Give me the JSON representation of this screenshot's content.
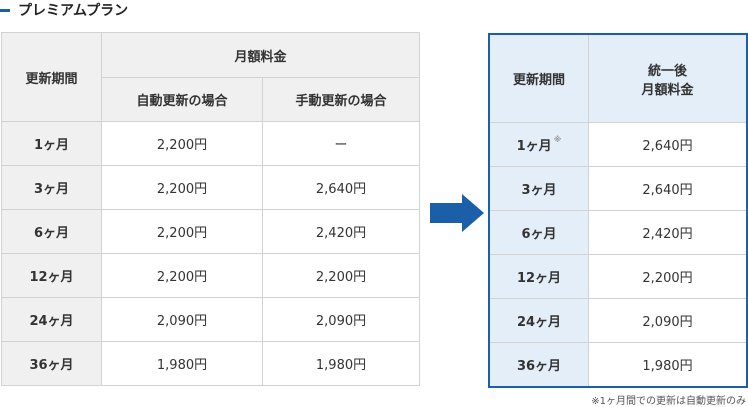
{
  "title": "プレミアムプラン",
  "colors": {
    "accent": "#1a5fa8",
    "header_bg": "#f0f0f0",
    "new_header_bg": "#e4eef9"
  },
  "current": {
    "col_period": "更新期間",
    "col_monthly": "月額料金",
    "col_auto": "自動更新の場合",
    "col_manual": "手動更新の場合",
    "rows": [
      {
        "period": "1ヶ月",
        "auto": "2,200円",
        "manual": "ー"
      },
      {
        "period": "3ヶ月",
        "auto": "2,200円",
        "manual": "2,640円"
      },
      {
        "period": "6ヶ月",
        "auto": "2,200円",
        "manual": "2,420円"
      },
      {
        "period": "12ヶ月",
        "auto": "2,200円",
        "manual": "2,200円"
      },
      {
        "period": "24ヶ月",
        "auto": "2,090円",
        "manual": "2,090円"
      },
      {
        "period": "36ヶ月",
        "auto": "1,980円",
        "manual": "1,980円"
      }
    ]
  },
  "arrow_icon": "arrow-right-icon",
  "unified": {
    "col_period": "更新期間",
    "col_price_line1": "統一後",
    "col_price_line2": "月額料金",
    "note_mark": "※",
    "rows": [
      {
        "period": "1ヶ月",
        "price": "2,640円"
      },
      {
        "period": "3ヶ月",
        "price": "2,640円"
      },
      {
        "period": "6ヶ月",
        "price": "2,420円"
      },
      {
        "period": "12ヶ月",
        "price": "2,200円"
      },
      {
        "period": "24ヶ月",
        "price": "2,090円"
      },
      {
        "period": "36ヶ月",
        "price": "1,980円"
      }
    ]
  },
  "footnote": "※1ヶ月間での更新は自動更新のみ"
}
